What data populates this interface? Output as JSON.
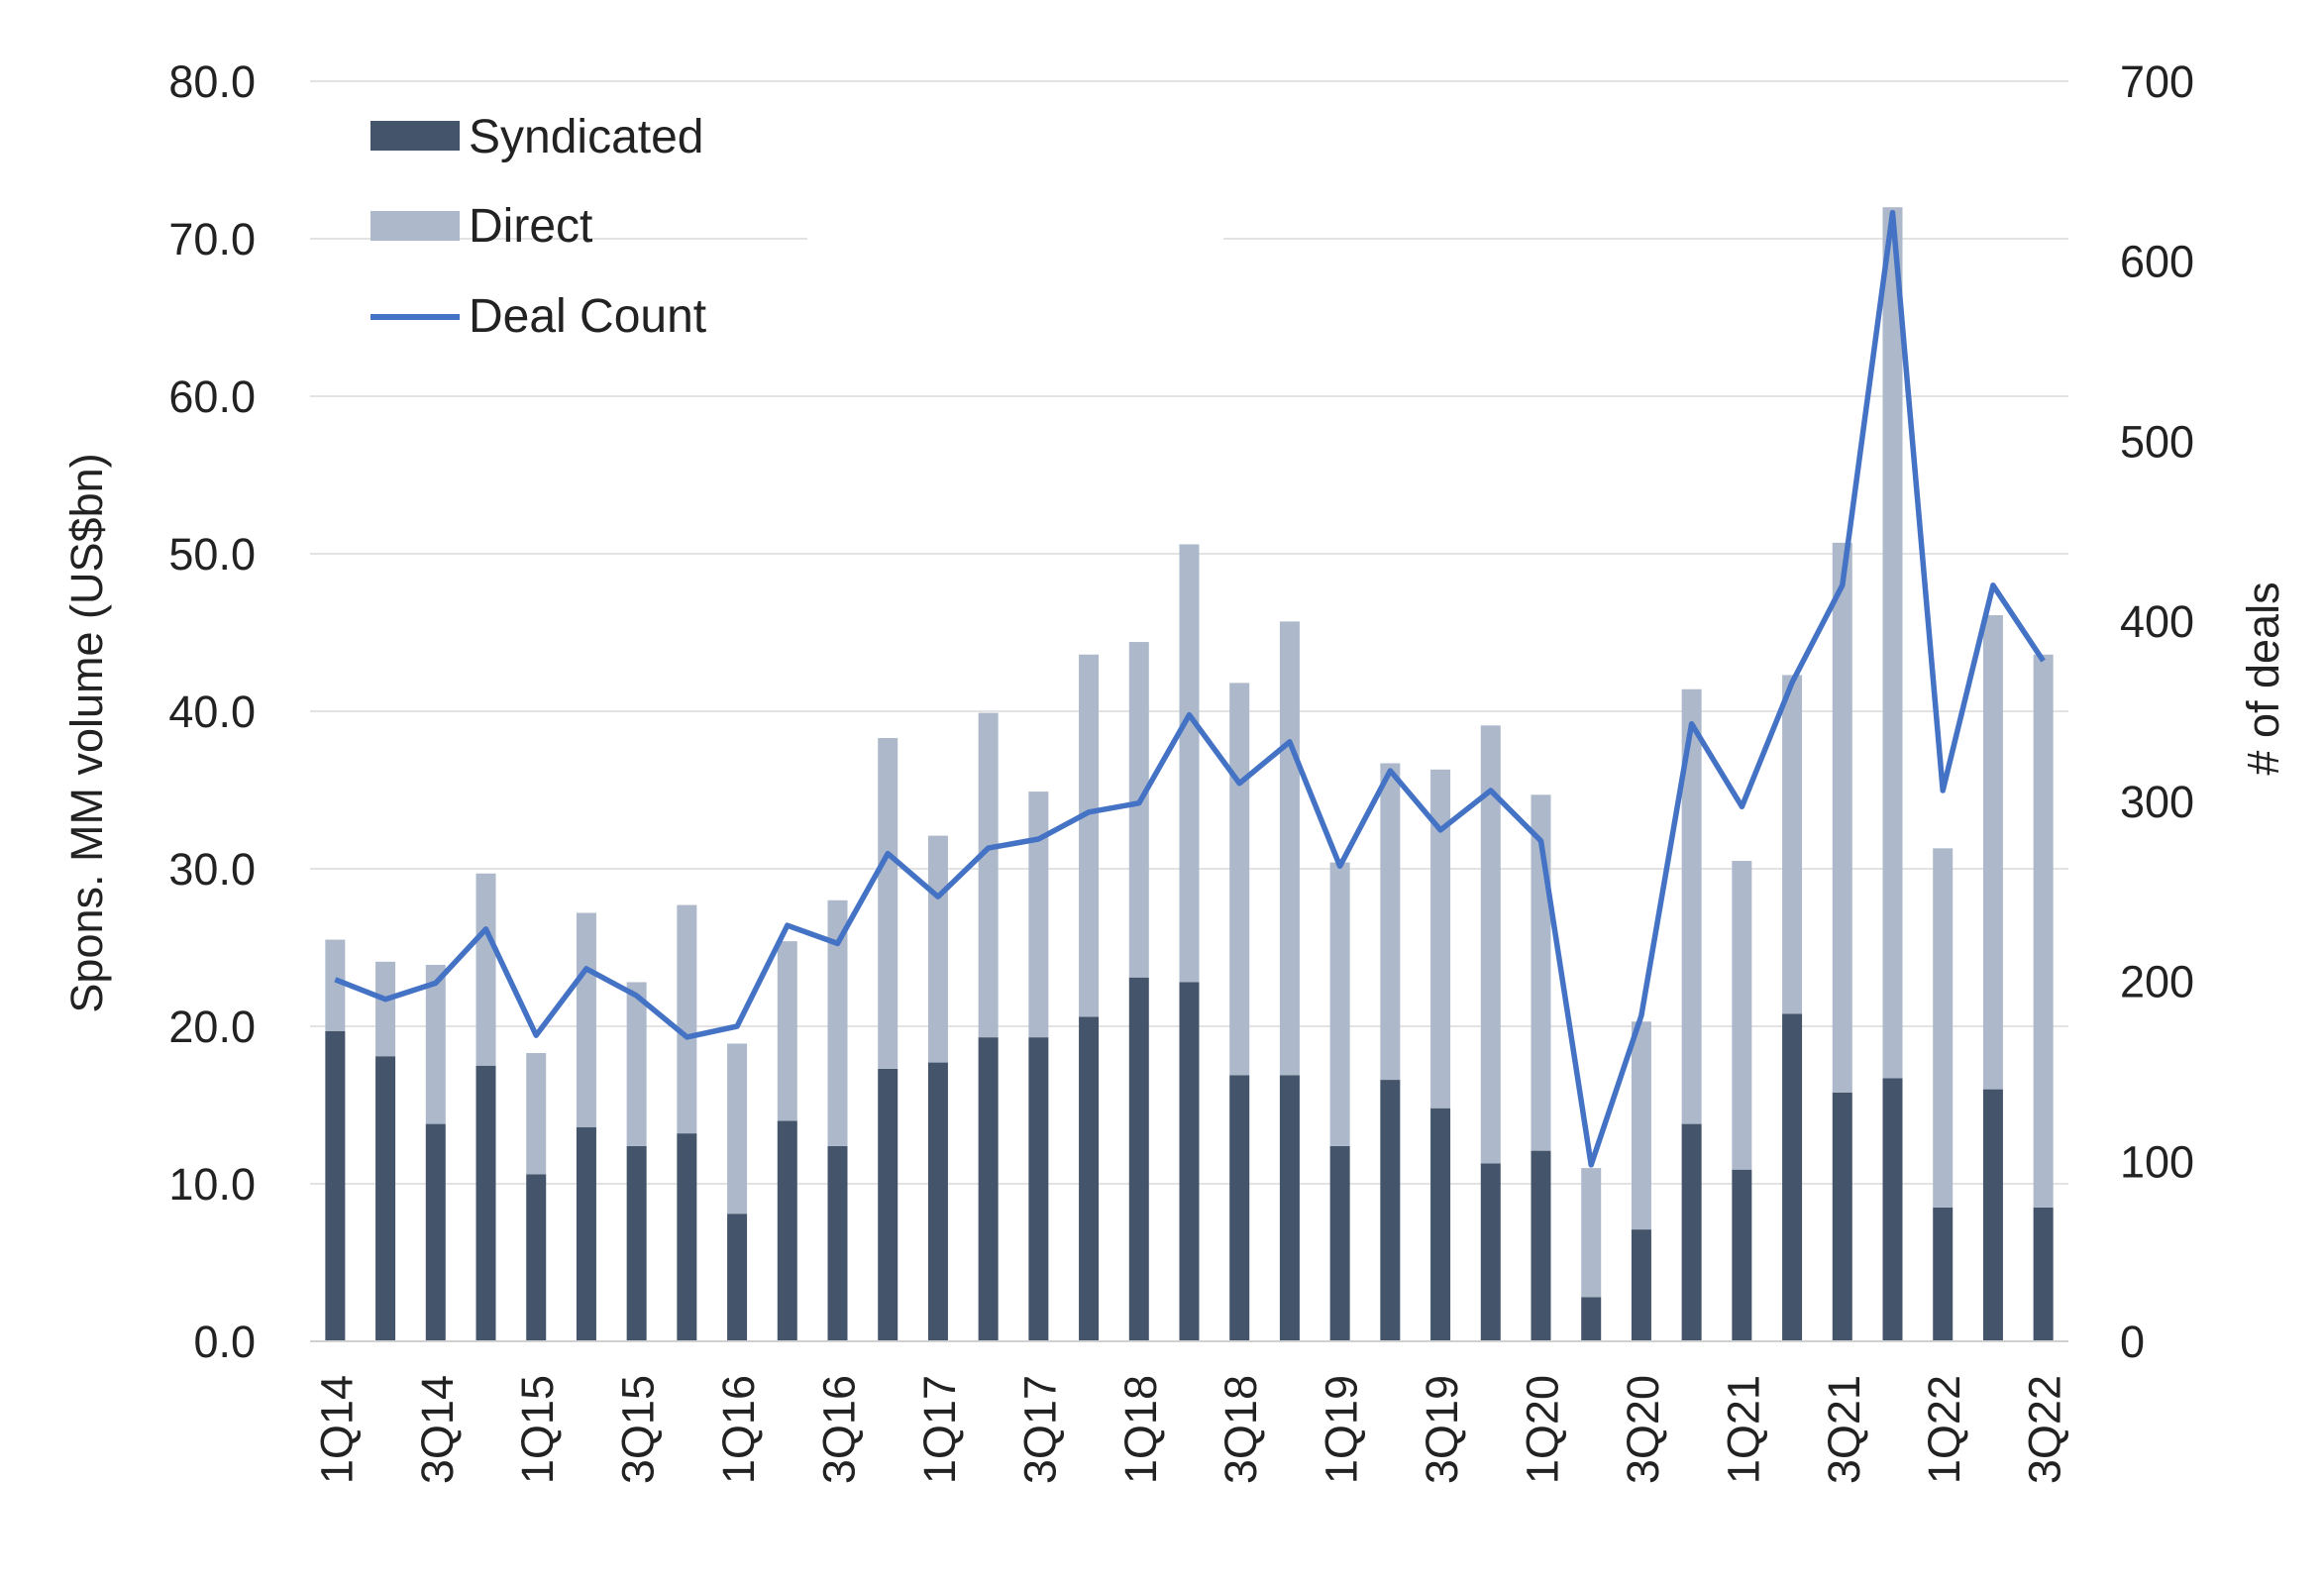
{
  "chart_data": {
    "type": "bar",
    "subtype": "stacked-bar-with-line",
    "title": "",
    "ylabel": "Spons. MM volume (US$bn)",
    "y2label": "# of deals",
    "ylim": [
      0,
      80
    ],
    "y2lim": [
      0,
      700
    ],
    "yticks": [
      "0.0",
      "10.0",
      "20.0",
      "30.0",
      "40.0",
      "50.0",
      "60.0",
      "70.0",
      "80.0"
    ],
    "y2ticks": [
      "0",
      "100",
      "200",
      "300",
      "400",
      "500",
      "600",
      "700"
    ],
    "grid": true,
    "legend_position": "top-left",
    "categories": [
      "1Q14",
      "2Q14",
      "3Q14",
      "4Q14",
      "1Q15",
      "2Q15",
      "3Q15",
      "4Q15",
      "1Q16",
      "2Q16",
      "3Q16",
      "4Q16",
      "1Q17",
      "2Q17",
      "3Q17",
      "4Q17",
      "1Q18",
      "2Q18",
      "3Q18",
      "4Q18",
      "1Q19",
      "2Q19",
      "3Q19",
      "4Q19",
      "1Q20",
      "2Q20",
      "3Q20",
      "4Q20",
      "1Q21",
      "2Q21",
      "3Q21",
      "4Q21",
      "1Q22",
      "2Q22",
      "3Q22"
    ],
    "xtick_labels": [
      "1Q14",
      "3Q14",
      "1Q15",
      "3Q15",
      "1Q16",
      "3Q16",
      "1Q17",
      "3Q17",
      "1Q18",
      "3Q18",
      "1Q19",
      "3Q19",
      "1Q20",
      "3Q20",
      "1Q21",
      "3Q21",
      "1Q22",
      "3Q22"
    ],
    "series": [
      {
        "name": "Syndicated",
        "kind": "bar",
        "axis": "left",
        "color": "#44546a",
        "values": [
          19.7,
          18.1,
          13.8,
          17.5,
          10.6,
          13.6,
          12.4,
          13.2,
          8.1,
          14.0,
          12.4,
          17.3,
          17.7,
          19.3,
          19.3,
          20.6,
          23.1,
          22.8,
          16.9,
          16.9,
          12.4,
          16.6,
          14.8,
          11.3,
          12.1,
          2.8,
          7.1,
          13.8,
          10.9,
          20.8,
          15.8,
          16.7,
          8.5,
          16.0,
          8.5
        ]
      },
      {
        "name": "Direct",
        "kind": "bar",
        "axis": "left",
        "color": "#adb9ca",
        "values": [
          5.8,
          6.0,
          10.1,
          12.2,
          7.7,
          13.6,
          10.4,
          14.5,
          10.8,
          11.4,
          15.6,
          21.0,
          14.4,
          20.6,
          15.6,
          23.0,
          21.3,
          27.8,
          24.9,
          28.8,
          18.0,
          20.1,
          21.5,
          27.8,
          22.6,
          8.2,
          13.2,
          27.6,
          19.6,
          21.5,
          34.9,
          55.3,
          22.8,
          30.1,
          35.1
        ]
      },
      {
        "name": "Deal Count",
        "kind": "line",
        "axis": "right",
        "color": "#4472c4",
        "values": [
          201,
          190,
          199,
          229,
          170,
          207,
          192,
          169,
          175,
          231,
          221,
          271,
          247,
          274,
          279,
          294,
          299,
          348,
          310,
          333,
          264,
          317,
          284,
          306,
          278,
          98,
          181,
          343,
          297,
          366,
          420,
          627,
          306,
          420,
          378
        ]
      }
    ]
  }
}
